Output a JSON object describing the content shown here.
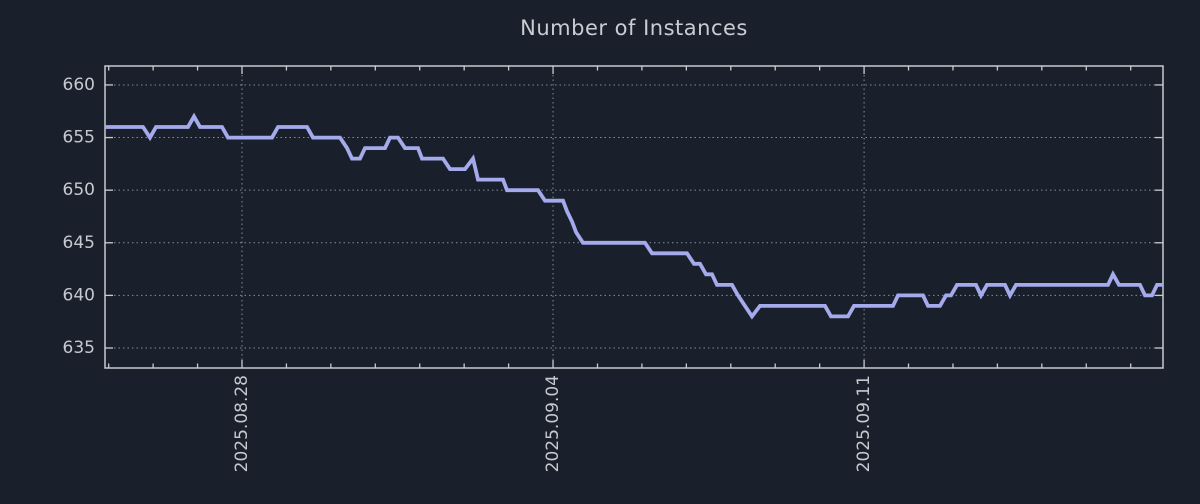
{
  "chart": {
    "title": "Number of Instances"
  },
  "colors": {
    "background": "#1a202b",
    "line": "#a4aaeb",
    "grid": "#878d96",
    "axis": "#c8cbd0",
    "text": "#c6c9ce"
  },
  "chart_data": {
    "type": "line",
    "title": "Number of Instances",
    "xlabel": "",
    "ylabel": "",
    "legend": "none",
    "grid": "dotted",
    "x_unit": "days from left edge of plot",
    "x_range": [
      0,
      23.81
    ],
    "y_range": [
      633.1,
      661.8
    ],
    "y_ticks": [
      635,
      640,
      645,
      650,
      655,
      660
    ],
    "x_major_ticks": [
      {
        "t": 3.083,
        "label": "2025.08.28"
      },
      {
        "t": 10.083,
        "label": "2025.09.04"
      },
      {
        "t": 17.083,
        "label": "2025.09.11"
      }
    ],
    "x_minor_ticks": {
      "start": 0.083,
      "step": 1,
      "count": 24
    },
    "series": [
      {
        "name": "Number of Instances",
        "points": [
          [
            0.0,
            656
          ],
          [
            0.855,
            656
          ],
          [
            1.013,
            655
          ],
          [
            1.148,
            656
          ],
          [
            1.868,
            656
          ],
          [
            2.003,
            657
          ],
          [
            2.138,
            656
          ],
          [
            2.633,
            656
          ],
          [
            2.768,
            655
          ],
          [
            3.759,
            655
          ],
          [
            3.894,
            656
          ],
          [
            4.546,
            656
          ],
          [
            4.681,
            655
          ],
          [
            5.289,
            655
          ],
          [
            5.446,
            654
          ],
          [
            5.559,
            653
          ],
          [
            5.739,
            653
          ],
          [
            5.851,
            654
          ],
          [
            6.302,
            654
          ],
          [
            6.414,
            655
          ],
          [
            6.594,
            655
          ],
          [
            6.752,
            654
          ],
          [
            7.044,
            654
          ],
          [
            7.134,
            653
          ],
          [
            7.607,
            653
          ],
          [
            7.764,
            652
          ],
          [
            8.102,
            652
          ],
          [
            8.282,
            653
          ],
          [
            8.395,
            651
          ],
          [
            8.957,
            651
          ],
          [
            9.047,
            650
          ],
          [
            9.745,
            650
          ],
          [
            9.903,
            649
          ],
          [
            10.308,
            649
          ],
          [
            10.398,
            648
          ],
          [
            10.511,
            647
          ],
          [
            10.601,
            646
          ],
          [
            10.758,
            645
          ],
          [
            12.153,
            645
          ],
          [
            12.311,
            644
          ],
          [
            13.098,
            644
          ],
          [
            13.256,
            643
          ],
          [
            13.391,
            643
          ],
          [
            13.526,
            642
          ],
          [
            13.661,
            642
          ],
          [
            13.773,
            641
          ],
          [
            14.111,
            641
          ],
          [
            14.246,
            640
          ],
          [
            14.404,
            639
          ],
          [
            14.561,
            638
          ],
          [
            14.741,
            639
          ],
          [
            16.204,
            639
          ],
          [
            16.339,
            638
          ],
          [
            16.721,
            638
          ],
          [
            16.856,
            639
          ],
          [
            17.734,
            639
          ],
          [
            17.846,
            640
          ],
          [
            18.409,
            640
          ],
          [
            18.521,
            639
          ],
          [
            18.791,
            639
          ],
          [
            18.926,
            640
          ],
          [
            19.039,
            640
          ],
          [
            19.174,
            641
          ],
          [
            19.601,
            641
          ],
          [
            19.714,
            640
          ],
          [
            19.849,
            641
          ],
          [
            20.254,
            641
          ],
          [
            20.366,
            640
          ],
          [
            20.501,
            641
          ],
          [
            22.572,
            641
          ],
          [
            22.685,
            642
          ],
          [
            22.82,
            641
          ],
          [
            23.292,
            641
          ],
          [
            23.405,
            640
          ],
          [
            23.562,
            640
          ],
          [
            23.675,
            641
          ],
          [
            23.81,
            641
          ]
        ]
      }
    ]
  }
}
